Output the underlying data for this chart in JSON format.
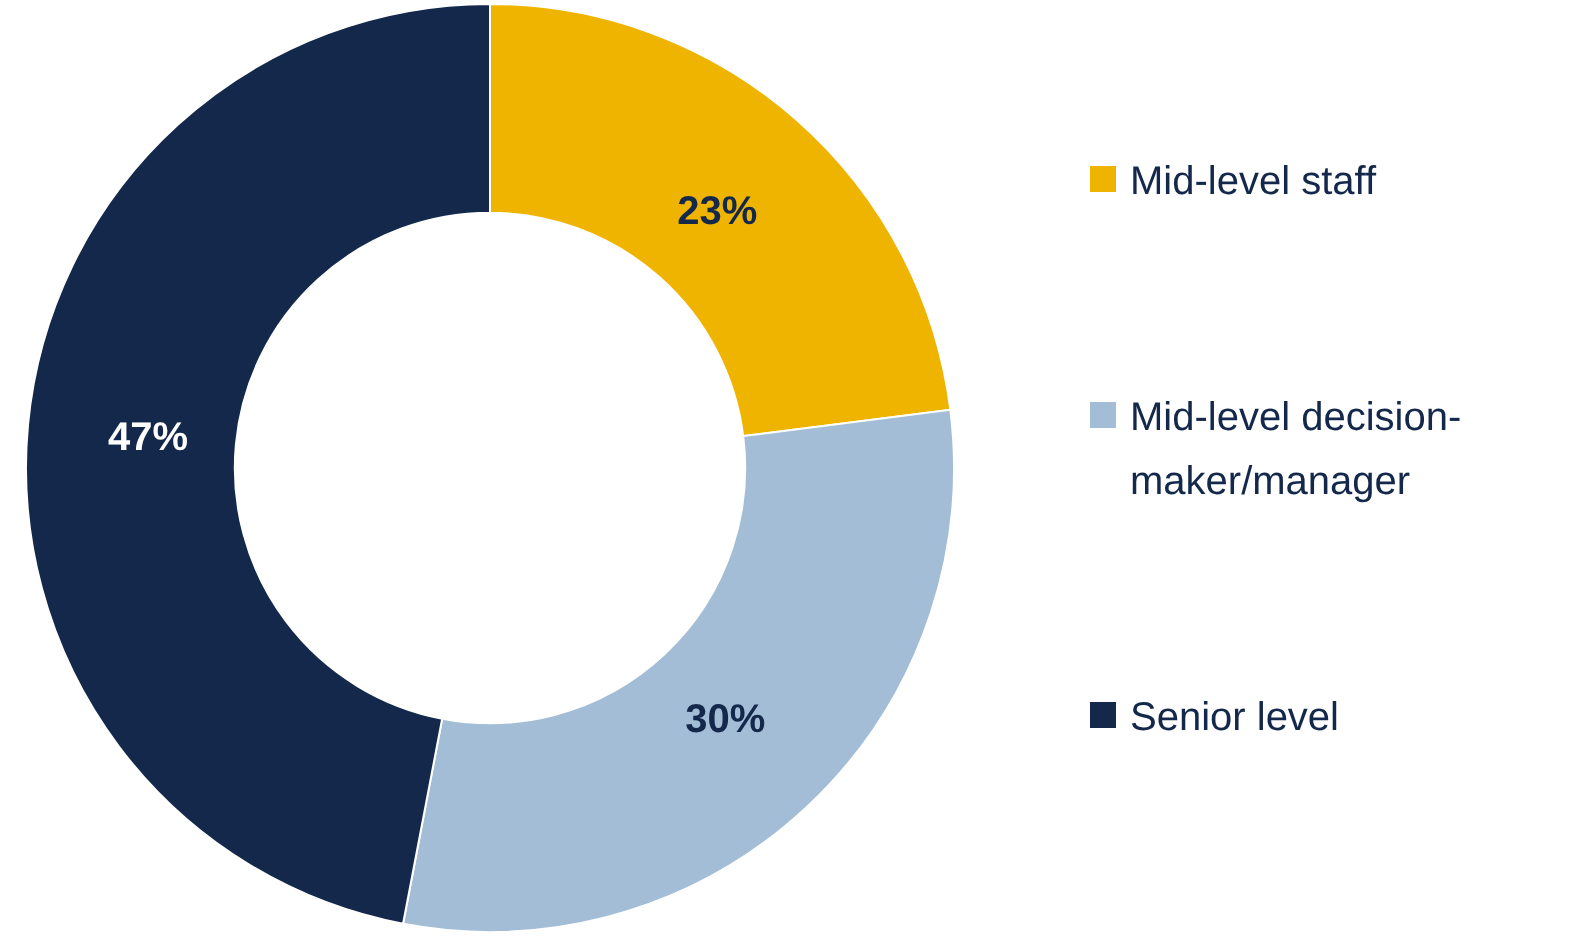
{
  "chart_data": {
    "type": "donut",
    "categories": [
      "Mid-level staff",
      "Mid-level decision-maker/manager",
      "Senior level"
    ],
    "values": [
      23,
      30,
      47
    ],
    "colors": [
      "#efb400",
      "#a3bdd6",
      "#14284b"
    ],
    "value_labels": [
      "23%",
      "30%",
      "47%"
    ],
    "legend": "right"
  }
}
